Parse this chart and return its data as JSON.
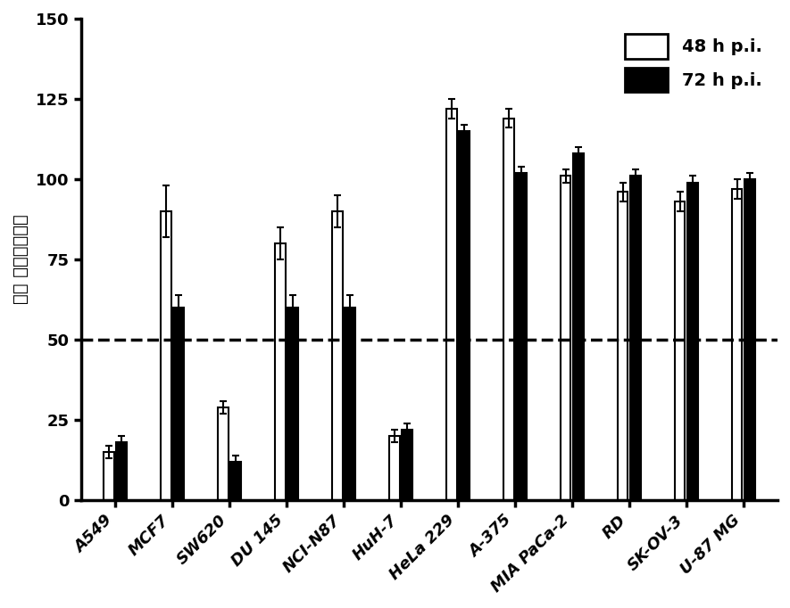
{
  "categories": [
    "A549",
    "MCF7",
    "SW620",
    "DU 145",
    "NCI-N87",
    "HuH-7",
    "HeLa 229",
    "A-375",
    "MIA PaCa-2",
    "RD",
    "SK-OV-3",
    "U-87 MG"
  ],
  "values_48h": [
    15,
    90,
    29,
    80,
    90,
    20,
    122,
    119,
    101,
    96,
    93,
    97
  ],
  "values_72h": [
    18,
    60,
    12,
    60,
    60,
    22,
    115,
    102,
    108,
    101,
    99,
    100
  ],
  "err_48h": [
    2,
    8,
    2,
    5,
    5,
    2,
    3,
    3,
    2,
    3,
    3,
    3
  ],
  "err_72h": [
    2,
    4,
    2,
    4,
    4,
    2,
    2,
    2,
    2,
    2,
    2,
    2
  ],
  "bar_width": 0.18,
  "bar_gap": 0.04,
  "color_48h": "#ffffff",
  "color_72h": "#000000",
  "edgecolor": "#000000",
  "ylabel": "细胞 存活率（％）",
  "ylim": [
    0,
    150
  ],
  "yticks": [
    0,
    25,
    50,
    75,
    100,
    125,
    150
  ],
  "dashed_line_y": 50,
  "legend_labels": [
    "48 h p.i.",
    "72 h p.i."
  ],
  "background_color": "#ffffff",
  "axis_fontsize": 14,
  "tick_fontsize": 13,
  "legend_fontsize": 14
}
